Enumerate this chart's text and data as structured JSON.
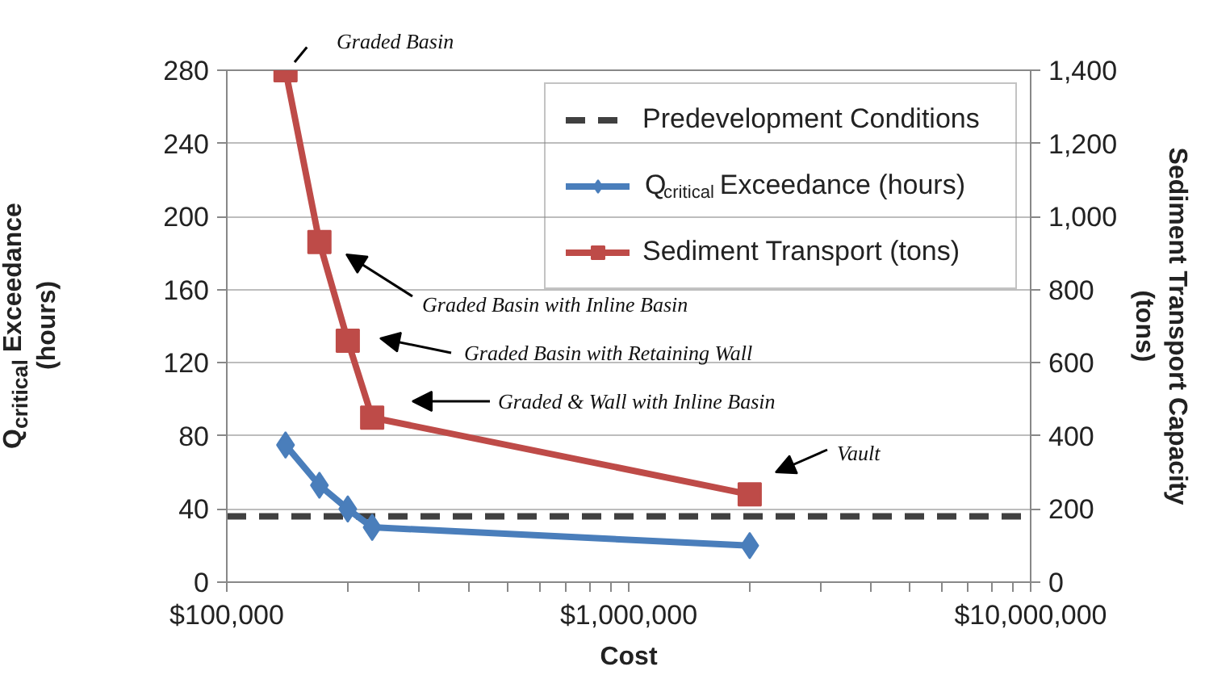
{
  "chart_data": {
    "type": "line",
    "x": [
      140000,
      170000,
      200000,
      230000,
      2000000
    ],
    "series": [
      {
        "name": "Q$_{critical}$ Exceedance (hours)",
        "color": "#4a7ebb",
        "marker": "diamond",
        "values": [
          75,
          53,
          40,
          30,
          20
        ]
      },
      {
        "name": "Sediment Transport (tons)",
        "color": "#be4b48",
        "marker": "square",
        "axis": "y2",
        "values": [
          1400,
          930,
          660,
          450,
          240
        ]
      }
    ],
    "xlabel": "Cost",
    "ylabel": "Q$_{critical}$ Exceedance (hours)",
    "y2label": "Sediment Transport Capacity (tons)",
    "log": "x",
    "xlim": [
      100000,
      10000000
    ],
    "xticks": [
      {
        "value": 100000,
        "label": "$100,000"
      },
      {
        "value": 1000000,
        "label": "$1,000,000"
      },
      {
        "value": 10000000,
        "label": "$10,000,000"
      }
    ],
    "ylim": [
      0,
      280
    ],
    "yticks": [
      0,
      40,
      80,
      120,
      160,
      200,
      240,
      280
    ],
    "y2lim": [
      0,
      1400
    ],
    "y2ticks": [
      0,
      200,
      400,
      600,
      800,
      {
        "value": 1000,
        "label": "1,000"
      },
      {
        "value": 1200,
        "label": "1,200"
      },
      {
        "value": 1400,
        "label": "1,400"
      }
    ],
    "ref_lines": [
      {
        "axis": "y",
        "value": 36,
        "label": "Predevelopment Conditions",
        "color": "#404040",
        "line_style": "dashed"
      }
    ],
    "annotations": [
      "Graded Basin",
      "Graded Basin with Inline Basin",
      "Graded Basin with Retaining Wall",
      "Graded & Wall with Inline Basin",
      "Vault"
    ],
    "grid": "y",
    "legend": "top right",
    "line_style": "solid"
  }
}
